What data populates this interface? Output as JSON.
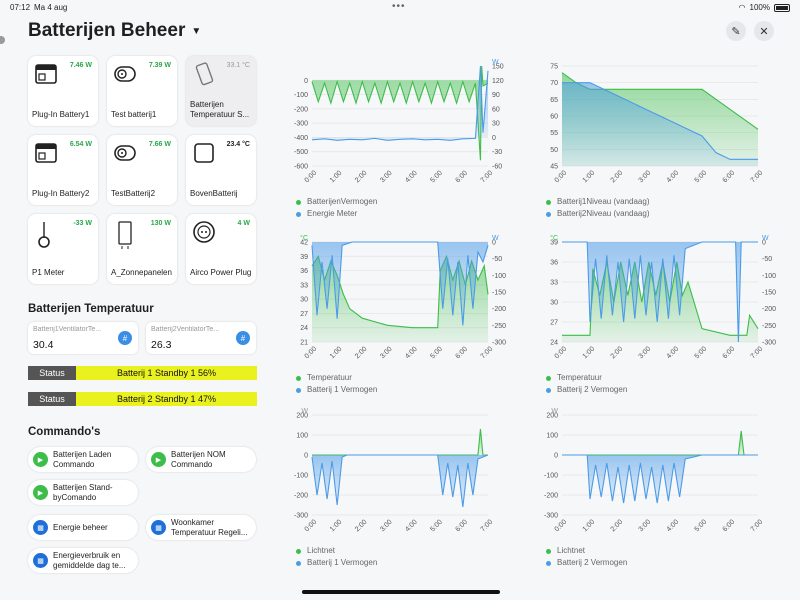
{
  "statusbar": {
    "time": "07:12",
    "date": "Ma 4 aug",
    "battery": "100%"
  },
  "header": {
    "title": "Batterijen Beheer"
  },
  "tiles": [
    {
      "name": "Plug-In Battery1",
      "value": "7.46 W",
      "icon": "battery-box-icon"
    },
    {
      "name": "Test batterij1",
      "value": "7.39 W",
      "icon": "smart-plug-icon"
    },
    {
      "name": "Batterijen Temperatuur S...",
      "value": "33.1 °C",
      "icon": "sensor-icon"
    },
    {
      "name": "Plug-In Battery2",
      "value": "6.54 W",
      "icon": "battery-box-icon"
    },
    {
      "name": "TestBatterij2",
      "value": "7.66 W",
      "icon": "smart-plug-icon"
    },
    {
      "name": "BovenBatterij",
      "value": "23.4 °C",
      "icon": "square-sensor-icon"
    },
    {
      "name": "P1 Meter",
      "value": "-33 W",
      "icon": "p1-meter-icon"
    },
    {
      "name": "A_Zonnepanelen",
      "value": "130 W",
      "icon": "inverter-icon"
    },
    {
      "name": "Airco Power Plug",
      "value": "4 W",
      "icon": "wall-socket-icon"
    }
  ],
  "temperature": {
    "title": "Batterijen Temperatuur",
    "cards": [
      {
        "label": "Batterij1VentilatorTe...",
        "value": "30.4"
      },
      {
        "label": "Batterij2VentilatorTe...",
        "value": "26.3"
      }
    ],
    "status": [
      {
        "key": "Status",
        "value": "Batterij 1 Standby 1 56%"
      },
      {
        "key": "Status",
        "value": "Batterij 2 Standby 1 47%"
      }
    ]
  },
  "commands": {
    "title": "Commando's",
    "items": [
      {
        "label_1": "Batterijen Laden",
        "label_2": "Commando",
        "icon": "play-icon"
      },
      {
        "label_1": "Batterijen NOM",
        "label_2": "Commando",
        "icon": "play-icon"
      },
      {
        "label_1": "Batterijen Stand-",
        "label_2": "byComando",
        "icon": "play-icon"
      },
      {
        "label_1": "Energie beheer",
        "label_2": "",
        "icon": "grid-icon"
      },
      {
        "label_1": "Woonkamer",
        "label_2": "Temperatuur Regeli...",
        "icon": "grid-icon"
      },
      {
        "label_1": "Energieverbruik en",
        "label_2": "gemiddelde dag te...",
        "icon": "grid-icon"
      }
    ]
  },
  "colors": {
    "green": "#3dbd4a",
    "blue": "#4b9be8",
    "status_yellow": "#e9f21e"
  },
  "chart_data": [
    {
      "type": "area",
      "x_ticks": [
        "0:00",
        "1:00",
        "2:00",
        "3:00",
        "4:00",
        "5:00",
        "6:00",
        "7:00"
      ],
      "ylim_left": [
        -600,
        100
      ],
      "yticks_left": [
        0,
        -100,
        -200,
        -300,
        -400,
        -500,
        -600
      ],
      "ylim_right": [
        -60,
        150
      ],
      "yticks_right": [
        150,
        120,
        90,
        60,
        30,
        0,
        -30,
        -60
      ],
      "right_unit": "W",
      "series": [
        {
          "name": "BatterijenVermogen",
          "axis": "left",
          "color": "#3dbd4a",
          "x": [
            0,
            0.25,
            0.5,
            0.75,
            1,
            1.25,
            1.5,
            1.75,
            2,
            2.25,
            2.5,
            2.75,
            3,
            3.25,
            3.5,
            3.75,
            4,
            4.25,
            4.5,
            4.75,
            5,
            5.25,
            5.5,
            5.75,
            6,
            6.25,
            6.5,
            6.7,
            6.75,
            6.8,
            7
          ],
          "y": [
            -10,
            -150,
            -20,
            -160,
            -10,
            -150,
            -20,
            -160,
            -10,
            -150,
            -20,
            -160,
            -10,
            -150,
            -20,
            -160,
            -10,
            -150,
            -20,
            -160,
            -10,
            -150,
            -20,
            -160,
            -10,
            -150,
            -20,
            -560,
            100,
            -40,
            -20
          ]
        },
        {
          "name": "Energie Meter",
          "axis": "right",
          "color": "#4b9be8",
          "x": [
            0,
            0.5,
            1,
            1.5,
            2,
            2.5,
            3,
            3.5,
            4,
            4.5,
            5,
            5.5,
            6,
            6.5,
            6.7,
            6.8,
            7
          ],
          "y": [
            -5,
            -3,
            -6,
            -4,
            -5,
            -2,
            -6,
            -4,
            -3,
            -5,
            -4,
            -6,
            -3,
            -2,
            150,
            10,
            140
          ]
        }
      ]
    },
    {
      "type": "area",
      "x_ticks": [
        "0:00",
        "1:00",
        "2:00",
        "3:00",
        "4:00",
        "5:00",
        "6:00",
        "7:00"
      ],
      "ylim": [
        45,
        75
      ],
      "yticks": [
        75,
        70,
        65,
        60,
        55,
        50,
        45
      ],
      "series": [
        {
          "name": "Batterij1Niveau (vandaag)",
          "color": "#3dbd4a",
          "x": [
            0,
            0.5,
            1,
            2,
            3,
            4,
            5,
            5.5,
            6,
            6.5,
            7
          ],
          "y": [
            73,
            70,
            68,
            68,
            68,
            68,
            68,
            65,
            62,
            59,
            56
          ]
        },
        {
          "name": "Batterij2Niveau (vandaag)",
          "color": "#4b9be8",
          "x": [
            0,
            1,
            2,
            3,
            4,
            5,
            5.5,
            6,
            7
          ],
          "y": [
            70,
            70,
            66,
            62,
            58,
            54,
            49,
            47,
            47
          ]
        }
      ]
    },
    {
      "type": "area",
      "x_ticks": [
        "0:00",
        "1:00",
        "2:00",
        "3:00",
        "4:00",
        "5:00",
        "6:00",
        "7:00"
      ],
      "left_unit": "°C",
      "right_unit": "W",
      "ylim_left": [
        21,
        42
      ],
      "yticks_left": [
        42,
        39,
        36,
        33,
        30,
        27,
        24,
        21
      ],
      "ylim_right": [
        -300,
        0
      ],
      "yticks_right": [
        0,
        -50,
        -100,
        -150,
        -200,
        -250,
        -300
      ],
      "series": [
        {
          "name": "Temperatuur",
          "axis": "left",
          "color": "#3dbd4a",
          "x": [
            0,
            0.25,
            0.5,
            0.75,
            1,
            1.25,
            1.5,
            2,
            3,
            4,
            5,
            5.1,
            5.35,
            5.6,
            5.85,
            6.1,
            6.35,
            6.6,
            6.85,
            7
          ],
          "y": [
            37,
            39,
            34,
            38,
            35,
            31,
            28,
            26,
            24.5,
            24,
            24,
            36,
            39,
            34,
            38,
            33,
            38,
            34,
            37,
            31
          ]
        },
        {
          "name": "Batterij 1 Vermogen",
          "axis": "right",
          "color": "#4b9be8",
          "x": [
            0,
            0.2,
            0.4,
            0.6,
            0.8,
            1,
            1.2,
            1.4,
            1.6,
            5,
            5.2,
            5.4,
            5.6,
            5.8,
            6,
            6.2,
            6.4,
            6.6,
            6.8,
            7
          ],
          "y": [
            -10,
            -220,
            -60,
            -200,
            -40,
            -230,
            -10,
            -5,
            0,
            0,
            -200,
            -50,
            -220,
            -60,
            -250,
            -40,
            -200,
            -30,
            -60,
            -10
          ]
        }
      ]
    },
    {
      "type": "area",
      "x_ticks": [
        "0:00",
        "1:00",
        "2:00",
        "3:00",
        "4:00",
        "5:00",
        "6:00",
        "7:00"
      ],
      "left_unit": "°C",
      "right_unit": "W",
      "ylim_left": [
        24,
        39
      ],
      "yticks_left": [
        39,
        36,
        33,
        30,
        27,
        24
      ],
      "ylim_right": [
        -300,
        0
      ],
      "yticks_right": [
        0,
        -50,
        -100,
        -150,
        -200,
        -250,
        -300
      ],
      "series": [
        {
          "name": "Temperatuur",
          "axis": "left",
          "color": "#3dbd4a",
          "x": [
            0,
            1,
            1.1,
            1.35,
            1.6,
            1.85,
            2.1,
            2.35,
            2.6,
            2.85,
            3.1,
            3.35,
            3.6,
            3.85,
            4.1,
            4.3,
            4.5,
            5,
            6,
            6.6,
            6.7,
            7
          ],
          "y": [
            25,
            25,
            35,
            31,
            36,
            30,
            36,
            31,
            36,
            30,
            36,
            31,
            36,
            30,
            36,
            31,
            33,
            26,
            25,
            25,
            28,
            26
          ]
        },
        {
          "name": "Batterij 2 Vermogen",
          "axis": "right",
          "color": "#4b9be8",
          "x": [
            0,
            0.9,
            1,
            1.2,
            1.4,
            1.6,
            1.8,
            2,
            2.2,
            2.4,
            2.6,
            2.8,
            3,
            3.2,
            3.4,
            3.6,
            3.8,
            4,
            4.2,
            4.4,
            5,
            6.2,
            6.3,
            6.4,
            7
          ],
          "y": [
            0,
            0,
            -240,
            -50,
            -230,
            -40,
            -220,
            -60,
            -240,
            -50,
            -230,
            -40,
            -220,
            -60,
            -240,
            -50,
            -230,
            -40,
            -220,
            -20,
            0,
            0,
            -300,
            0,
            0
          ]
        }
      ]
    },
    {
      "type": "area",
      "x_ticks": [
        "0:00",
        "1:00",
        "2:00",
        "3:00",
        "4:00",
        "5:00",
        "6:00",
        "7:00"
      ],
      "left_unit": "W",
      "ylim": [
        -300,
        200
      ],
      "yticks": [
        200,
        100,
        0,
        -100,
        -200,
        -300
      ],
      "series": [
        {
          "name": "Lichtnet",
          "color": "#3dbd4a",
          "x": [
            0,
            6.6,
            6.7,
            6.8,
            7
          ],
          "y": [
            0,
            0,
            130,
            0,
            0
          ]
        },
        {
          "name": "Batterij 1 Vermogen",
          "color": "#4b9be8",
          "x": [
            0,
            0.2,
            0.4,
            0.6,
            0.8,
            1,
            1.2,
            1.4,
            5,
            5.2,
            5.4,
            5.6,
            5.8,
            6,
            6.2,
            6.4,
            6.6,
            6.8,
            7
          ],
          "y": [
            -10,
            -200,
            -40,
            -220,
            -30,
            -250,
            -10,
            0,
            0,
            -200,
            -40,
            -210,
            -50,
            -260,
            -40,
            -200,
            -20,
            -10,
            0
          ]
        }
      ]
    },
    {
      "type": "area",
      "x_ticks": [
        "0:00",
        "1:00",
        "2:00",
        "3:00",
        "4:00",
        "5:00",
        "6:00",
        "7:00"
      ],
      "left_unit": "W",
      "ylim": [
        -300,
        200
      ],
      "yticks": [
        200,
        100,
        0,
        -100,
        -200,
        -300
      ],
      "series": [
        {
          "name": "Lichtnet",
          "color": "#3dbd4a",
          "x": [
            0,
            6.3,
            6.4,
            6.5,
            7
          ],
          "y": [
            0,
            0,
            120,
            0,
            0
          ]
        },
        {
          "name": "Batterij 2 Vermogen",
          "color": "#4b9be8",
          "x": [
            0,
            0.9,
            1,
            1.2,
            1.4,
            1.6,
            1.8,
            2,
            2.2,
            2.4,
            2.6,
            2.8,
            3,
            3.2,
            3.4,
            3.6,
            3.8,
            4,
            4.2,
            4.4,
            5,
            7
          ],
          "y": [
            0,
            0,
            -220,
            -50,
            -210,
            -40,
            -230,
            -60,
            -240,
            -50,
            -230,
            -40,
            -220,
            -60,
            -240,
            -50,
            -230,
            -40,
            -210,
            -20,
            0,
            0
          ]
        }
      ]
    }
  ]
}
